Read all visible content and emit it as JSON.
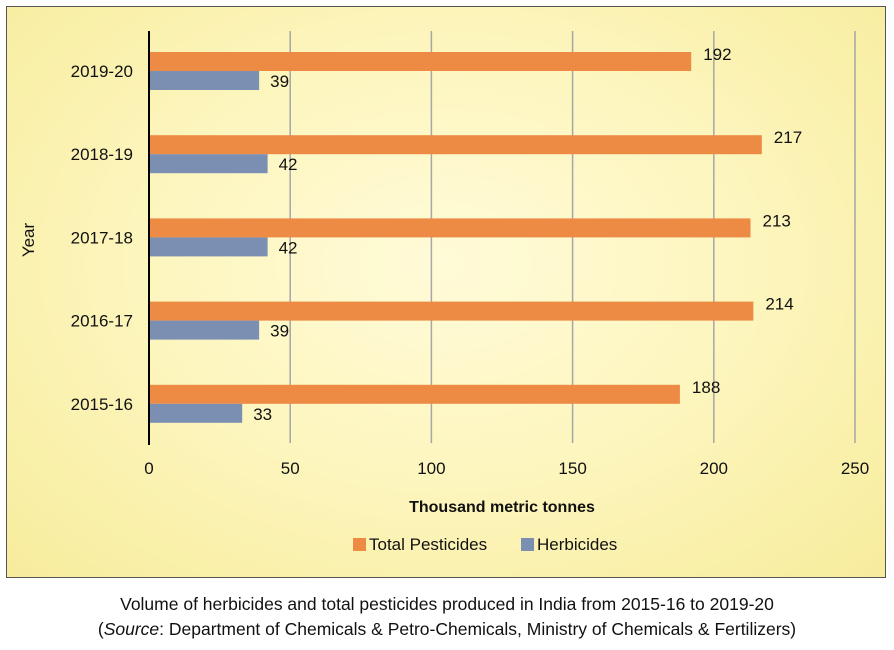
{
  "chart_data": {
    "type": "bar",
    "orientation": "horizontal",
    "categories": [
      "2019-20",
      "2018-19",
      "2017-18",
      "2016-17",
      "2015-16"
    ],
    "series": [
      {
        "name": "Total Pesticides",
        "color": "#ed8a43",
        "values": [
          192,
          217,
          213,
          214,
          188
        ]
      },
      {
        "name": "Herbicides",
        "color": "#7b8fb2",
        "values": [
          39,
          42,
          42,
          39,
          33
        ]
      }
    ],
    "xlabel": "Thousand metric tonnes",
    "ylabel": "Year",
    "xlim": [
      0,
      250
    ],
    "xticks": [
      "0",
      "50",
      "100",
      "150",
      "200",
      "250"
    ],
    "grid": "vertical",
    "legend": "bottom-center"
  },
  "caption": {
    "line1": "Volume of herbicides and total pesticides produced in India from 2015-16 to 2019-20",
    "line2_prefix": "(",
    "line2_source": "Source",
    "line2_rest": ": Department of Chemicals & Petro-Chemicals, Ministry of Chemicals & Fertilizers)"
  }
}
